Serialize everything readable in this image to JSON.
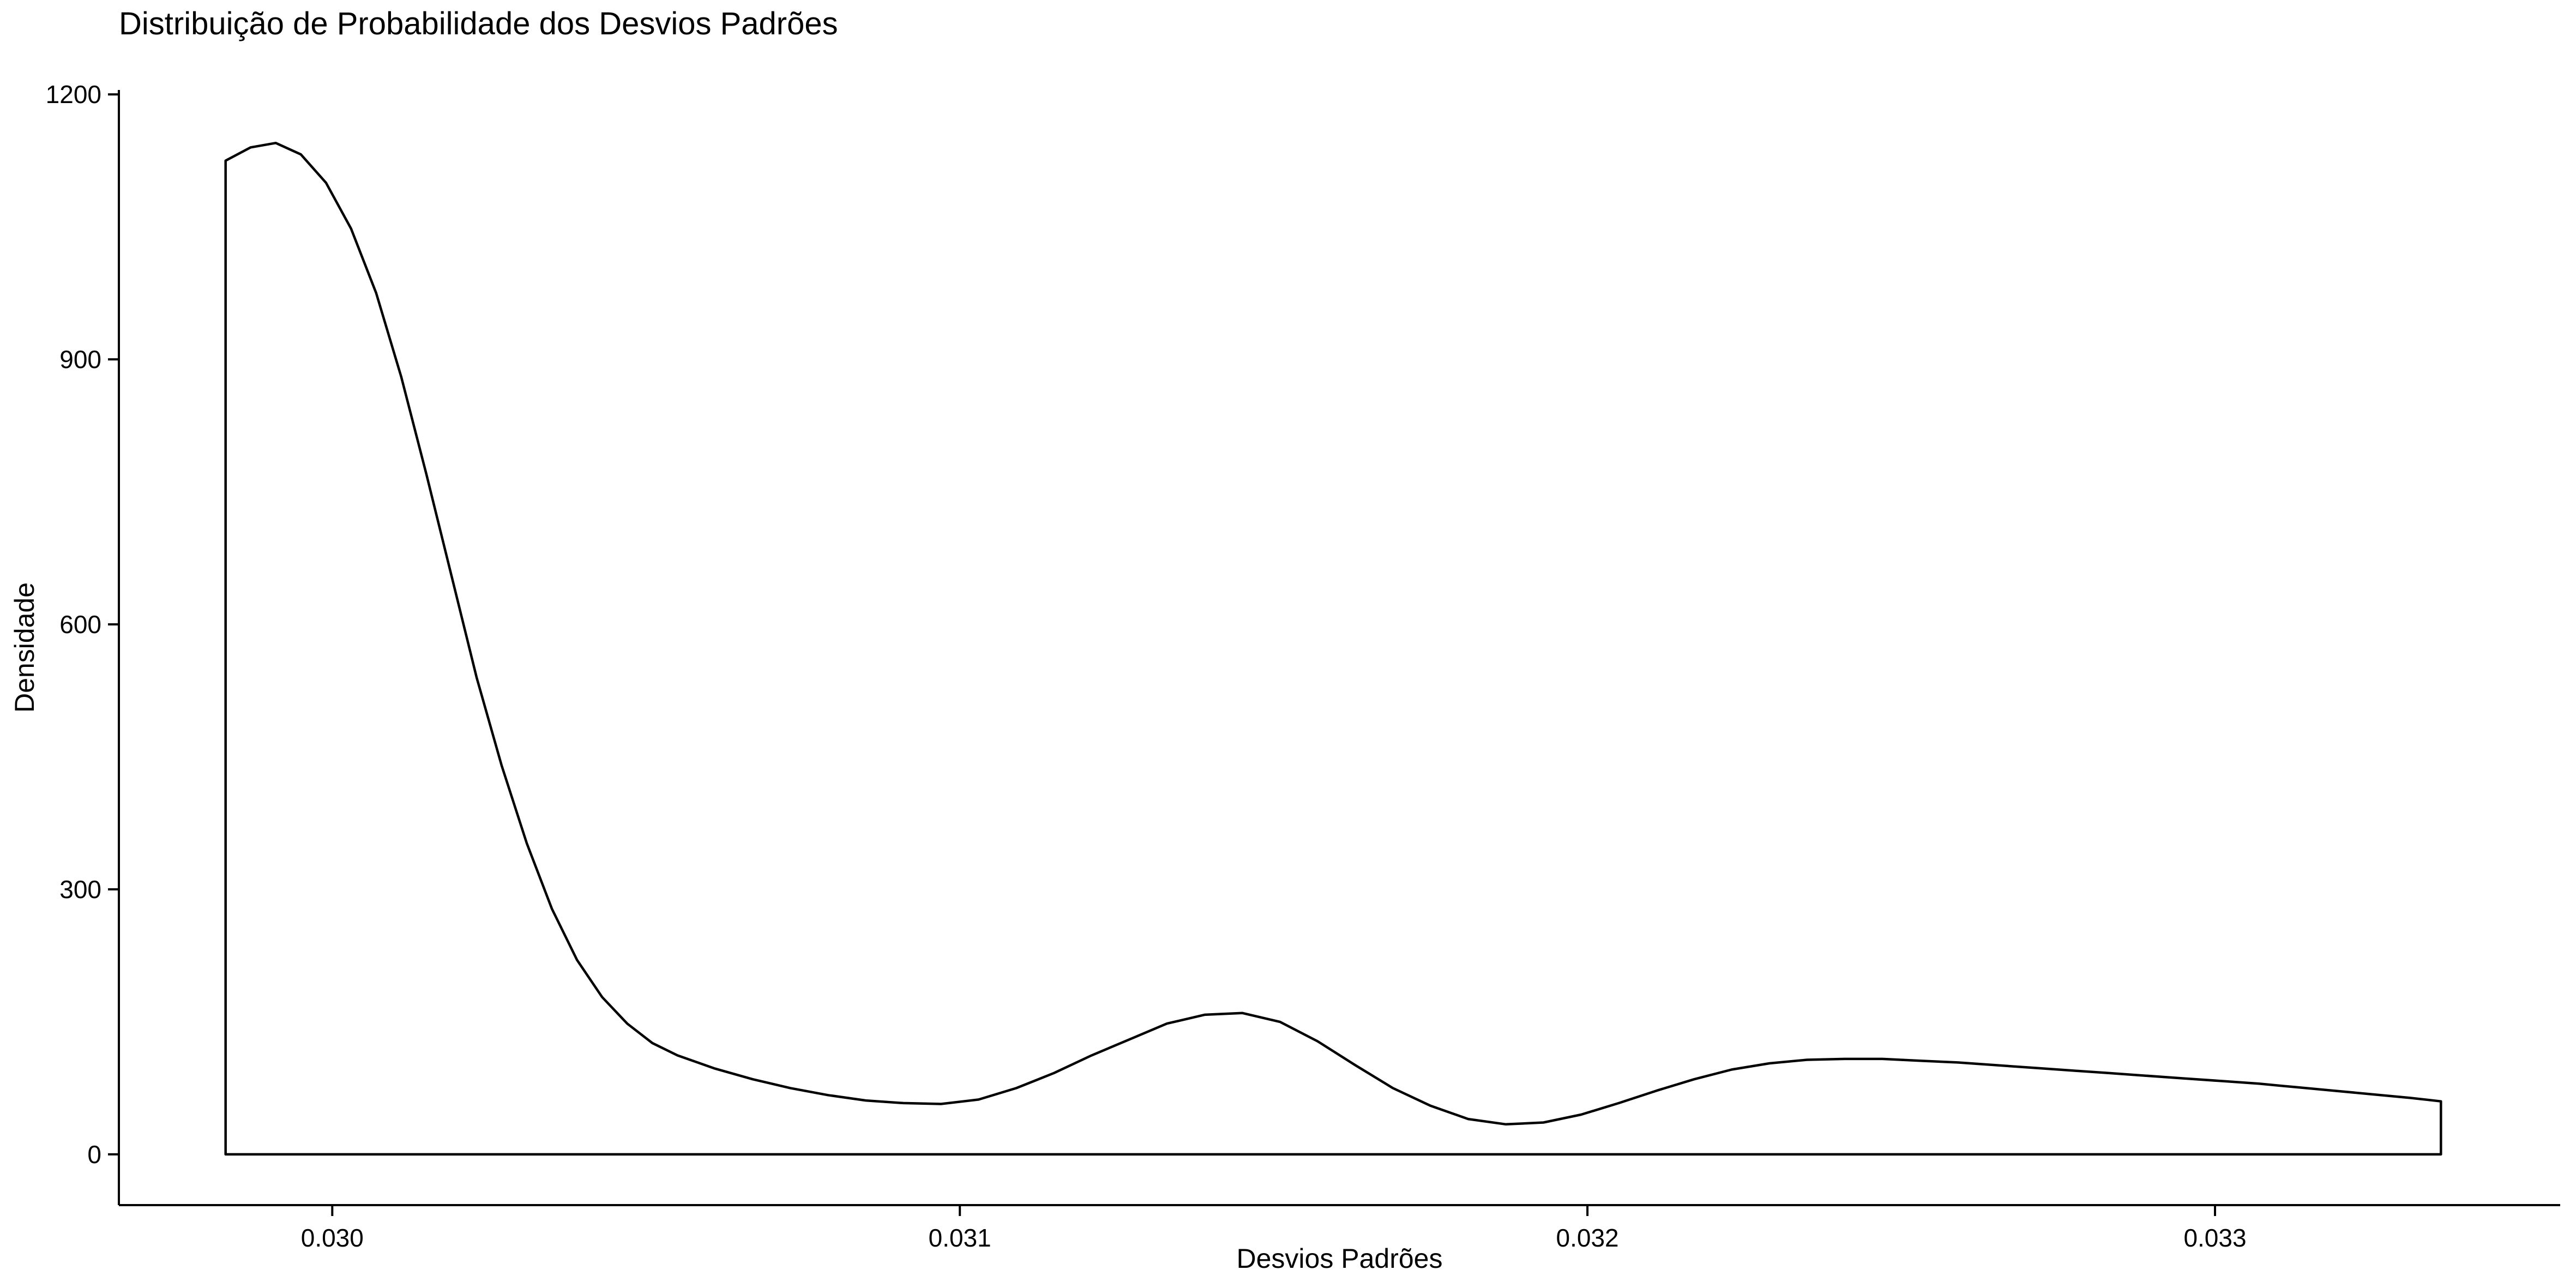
{
  "chart_data": {
    "type": "area",
    "title": "Distribuição de Probabilidade dos Desvios Padrões",
    "xlabel": "Desvios Padrões",
    "ylabel": "Densidade",
    "xlim": [
      0.02966,
      0.03355
    ],
    "ylim": [
      -57.5,
      1205
    ],
    "x_ticks": [
      0.03,
      0.031,
      0.032,
      0.033
    ],
    "x_tick_labels": [
      "0.030",
      "0.031",
      "0.032",
      "0.033"
    ],
    "y_ticks": [
      0,
      300,
      600,
      900,
      1200
    ],
    "y_tick_labels": [
      "0",
      "300",
      "600",
      "900",
      "1200"
    ],
    "grid": false,
    "fill": "none",
    "series": [
      {
        "x": [
          0.02983,
          0.02987,
          0.02991,
          0.02995,
          0.02999,
          0.03003,
          0.03007,
          0.03011,
          0.03015,
          0.03019,
          0.03023,
          0.03027,
          0.03031,
          0.03035,
          0.03039,
          0.03043,
          0.03047,
          0.03051,
          0.03055,
          0.03061,
          0.03067,
          0.03073,
          0.03079,
          0.03085,
          0.03091,
          0.03097,
          0.03103,
          0.03109,
          0.03115,
          0.03121,
          0.03127,
          0.03133,
          0.03139,
          0.03145,
          0.03151,
          0.03157,
          0.03163,
          0.03169,
          0.03175,
          0.03181,
          0.03187,
          0.03193,
          0.03199,
          0.03205,
          0.03211,
          0.03217,
          0.03223,
          0.03229,
          0.03235,
          0.03241,
          0.03247,
          0.03253,
          0.03259,
          0.03265,
          0.03271,
          0.03277,
          0.03283,
          0.03289,
          0.03295,
          0.03301,
          0.03307,
          0.03313,
          0.03319,
          0.03325,
          0.03331,
          0.03336
        ],
        "y": [
          1125,
          1140,
          1145,
          1132,
          1100,
          1048,
          975,
          880,
          770,
          655,
          540,
          440,
          352,
          278,
          220,
          178,
          148,
          126,
          112,
          97,
          85,
          75,
          67,
          61,
          58,
          57,
          62,
          75,
          92,
          112,
          130,
          148,
          158,
          160,
          150,
          128,
          101,
          75,
          55,
          40,
          34,
          36,
          45,
          58,
          72,
          85,
          96,
          103,
          107,
          108,
          108,
          106,
          104,
          101,
          98,
          95,
          92,
          89,
          86,
          83,
          80,
          76,
          72,
          68,
          64,
          60
        ]
      }
    ]
  }
}
